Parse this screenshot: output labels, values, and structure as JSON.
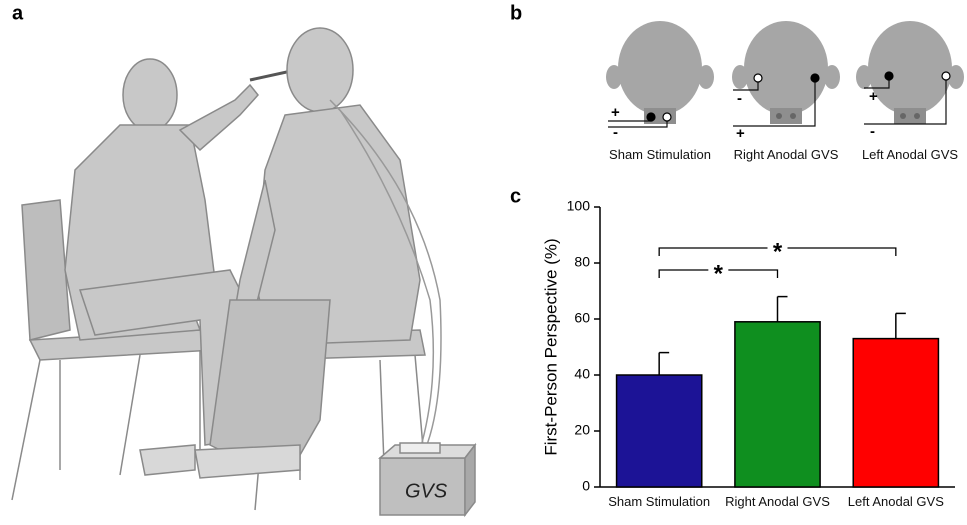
{
  "panel_labels": [
    "a",
    "b",
    "c"
  ],
  "panel_a": {
    "device_label": "GVS"
  },
  "panel_b": {
    "diagrams": [
      {
        "caption": "Sham Stimulation",
        "signs": [
          "+",
          "-"
        ]
      },
      {
        "caption": "Right Anodal GVS",
        "signs": [
          "-",
          "+"
        ]
      },
      {
        "caption": "Left Anodal GVS",
        "signs": [
          "+",
          "-"
        ]
      }
    ]
  },
  "chart_data": {
    "type": "bar",
    "y_label": "First-Person Perspective (%)",
    "categories": [
      "Sham Stimulation",
      "Right Anodal GVS",
      "Left Anodal GVS"
    ],
    "values": [
      40,
      59,
      53
    ],
    "errors": [
      8,
      9,
      9
    ],
    "colors": [
      "#1c1396",
      "#0f8f1f",
      "#ff0000"
    ],
    "ylim": [
      0,
      100
    ],
    "yticks": [
      0,
      20,
      40,
      60,
      80,
      100
    ],
    "significance_labels": [
      "*",
      "*"
    ]
  }
}
